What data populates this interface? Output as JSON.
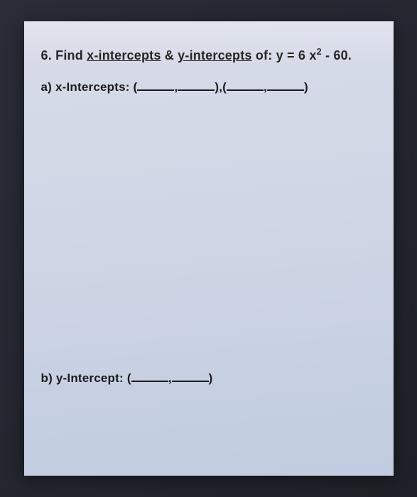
{
  "question": {
    "number": "6.",
    "prompt_prefix": "Find ",
    "term1": "x-intercepts",
    "conjunction": " & ",
    "term2": "y-intercepts",
    "prompt_suffix": " of: ",
    "equation_pre": "y = 6 x",
    "equation_exp": "2",
    "equation_post": " - 60."
  },
  "part_a": {
    "label": "a)",
    "text": "x-Intercepts:",
    "paren_open": " (",
    "comma": ",",
    "paren_close": ")",
    "separator": ",",
    "paren_open2": "(",
    "paren_close2": ")"
  },
  "part_b": {
    "label": "b)",
    "text": "y-Intercept:",
    "paren_open": " (",
    "comma": ",",
    "paren_close": ")"
  },
  "colors": {
    "paper_bg": "#d4dae8",
    "text": "#1a1a1a",
    "frame": "#2a2d38"
  }
}
